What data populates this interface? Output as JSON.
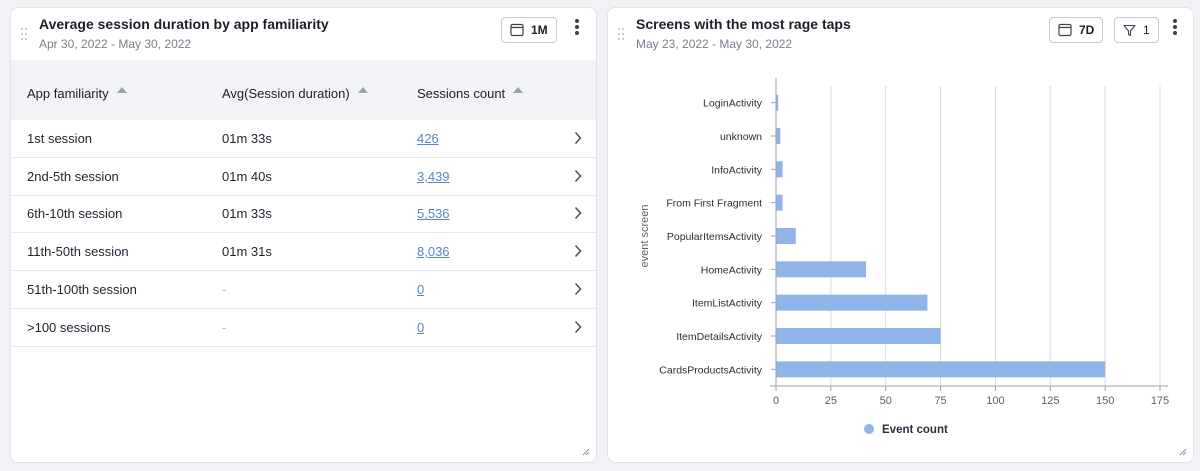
{
  "left_card": {
    "title": "Average session duration by app familiarity",
    "date_range": "Apr 30, 2022 - May 30, 2022",
    "period_label": "1M",
    "columns": [
      "App familiarity",
      "Avg(Session duration)",
      "Sessions count"
    ],
    "rows": [
      {
        "familiarity": "1st session",
        "duration": "01m 33s",
        "count": "426"
      },
      {
        "familiarity": "2nd-5th session",
        "duration": "01m 40s",
        "count": "3,439"
      },
      {
        "familiarity": "6th-10th session",
        "duration": "01m 33s",
        "count": "5,536"
      },
      {
        "familiarity": "11th-50th session",
        "duration": "01m 31s",
        "count": "8,036"
      },
      {
        "familiarity": "51th-100th session",
        "duration": "-",
        "count": "0"
      },
      {
        "familiarity": ">100 sessions",
        "duration": "-",
        "count": "0"
      }
    ]
  },
  "right_card": {
    "title": "Screens with the most rage taps",
    "date_range": "May 23, 2022 - May 30, 2022",
    "period_label": "7D",
    "filter_count": "1"
  },
  "colors": {
    "bar": "#8fb4e8",
    "link": "#5b85c9",
    "axis": "#9ca1ad",
    "grid": "#d9dbe1"
  },
  "chart_data": {
    "type": "bar",
    "orientation": "horizontal",
    "categories": [
      "LoginActivity",
      "unknown",
      "InfoActivity",
      "From First Fragment",
      "PopularItemsActivity",
      "HomeActivity",
      "ItemListActivity",
      "ItemDetailsActivity",
      "CardsProductsActivity"
    ],
    "values": [
      1,
      2,
      3,
      3,
      9,
      41,
      69,
      75,
      150
    ],
    "xlabel": "",
    "ylabel": "event screen",
    "xlim": [
      0,
      175
    ],
    "xticks": [
      "0",
      "25",
      "50",
      "75",
      "100",
      "125",
      "150",
      "175"
    ],
    "grid": true,
    "legend": [
      "Event count"
    ],
    "legend_position": "bottom"
  }
}
